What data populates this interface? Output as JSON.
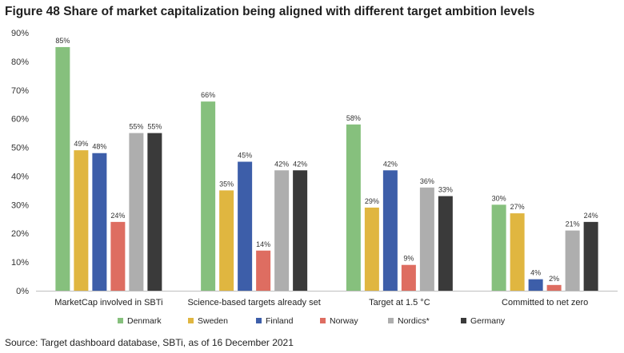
{
  "chart_data": {
    "type": "bar",
    "title": "Figure 48 Share of market capitalization being aligned with different target ambition levels",
    "source": "Source: Target dashboard database, SBTi, as of 16 December 2021",
    "categories": [
      "MarketCap involved in SBTi",
      "Science-based targets already set",
      "Target at 1.5 °C",
      "Committed to net zero"
    ],
    "series": [
      {
        "name": "Denmark",
        "color": "#86c07d",
        "values": [
          85,
          66,
          58,
          30
        ]
      },
      {
        "name": "Sweden",
        "color": "#e0b640",
        "values": [
          49,
          35,
          29,
          27
        ]
      },
      {
        "name": "Finland",
        "color": "#3d5ea9",
        "values": [
          48,
          45,
          42,
          4
        ]
      },
      {
        "name": "Norway",
        "color": "#de6d61",
        "values": [
          24,
          14,
          9,
          2
        ]
      },
      {
        "name": "Nordics*",
        "color": "#aeaeae",
        "values": [
          55,
          42,
          36,
          21
        ]
      },
      {
        "name": "Germany",
        "color": "#3a3a3a",
        "values": [
          55,
          42,
          33,
          24
        ]
      }
    ],
    "data_labels": [
      [
        "85%",
        "49%",
        "48%",
        "24%",
        "55%",
        "55%"
      ],
      [
        "66%",
        "35%",
        "45%",
        "14%",
        "42%",
        "42%"
      ],
      [
        "58%",
        "29%",
        "42%",
        "9%",
        "36%",
        "33%"
      ],
      [
        "30%",
        "27%",
        "4%",
        "2%",
        "21%",
        "24%"
      ]
    ],
    "y_ticks": [
      "0%",
      "10%",
      "20%",
      "30%",
      "40%",
      "50%",
      "60%",
      "70%",
      "80%",
      "90%"
    ],
    "ylim": [
      0,
      90
    ],
    "legend": "bottom",
    "grid": false
  }
}
